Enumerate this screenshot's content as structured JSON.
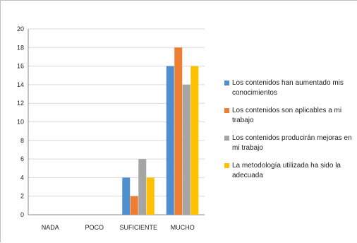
{
  "chart_data": {
    "type": "bar",
    "title": "",
    "xlabel": "",
    "ylabel": "",
    "ylim": [
      0,
      20
    ],
    "yticks": [
      0,
      2,
      4,
      6,
      8,
      10,
      12,
      14,
      16,
      18,
      20
    ],
    "categories": [
      "NADA",
      "POCO",
      "SUFICIENTE",
      "MUCHO"
    ],
    "grid": true,
    "legend_position": "right",
    "series": [
      {
        "name": "Los contenidos han aumentado mis conocimientos",
        "color": "#4f8fd0",
        "values": [
          0,
          0,
          4,
          16
        ]
      },
      {
        "name": "Los contenidos son aplicables a mi trabajo",
        "color": "#ed7d31",
        "values": [
          0,
          0,
          2,
          18
        ]
      },
      {
        "name": "Los contenidos producirán mejoras en mi trabajo",
        "color": "#a5a5a5",
        "values": [
          0,
          0,
          6,
          14
        ]
      },
      {
        "name": "La metodología utilizada ha sido la adecuada",
        "color": "#ffc000",
        "values": [
          0,
          0,
          4,
          16
        ]
      }
    ]
  }
}
